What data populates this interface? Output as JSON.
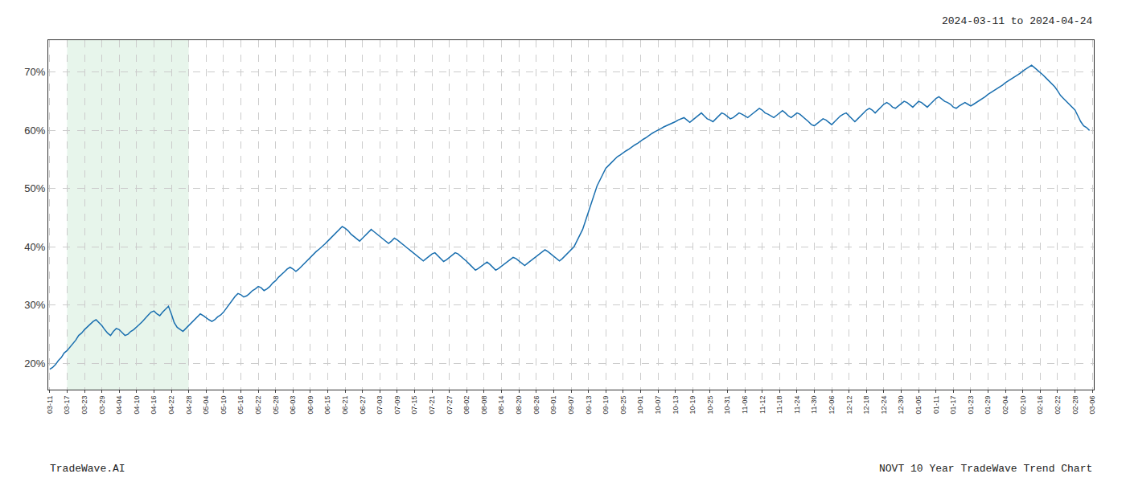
{
  "chart_data": {
    "type": "line",
    "annotations": [
      "2024-03-11 to 2024-04-24",
      "TradeWave.AI",
      "NOVT 10 Year TradeWave Trend Chart"
    ],
    "color": "#1a6faf",
    "grid": true,
    "shade": {
      "start": "03-17",
      "end": "04-28",
      "color": "#d4edda"
    },
    "ylim": [
      0.155,
      0.755
    ],
    "yticks": [
      {
        "value": 0.2,
        "label": "20%"
      },
      {
        "value": 0.3,
        "label": "30%"
      },
      {
        "value": 0.4,
        "label": "40%"
      },
      {
        "value": 0.5,
        "label": "50%"
      },
      {
        "value": 0.6,
        "label": "60%"
      },
      {
        "value": 0.7,
        "label": "70%"
      }
    ],
    "categories": [
      "03-11",
      null,
      null,
      null,
      null,
      null,
      "03-17",
      null,
      null,
      null,
      null,
      null,
      "03-23",
      null,
      null,
      null,
      null,
      null,
      "03-29",
      null,
      null,
      null,
      null,
      null,
      "04-04",
      null,
      null,
      null,
      null,
      null,
      "04-10",
      null,
      null,
      null,
      null,
      null,
      "04-16",
      null,
      null,
      null,
      null,
      null,
      "04-22",
      null,
      null,
      null,
      null,
      null,
      "04-28",
      null,
      null,
      null,
      null,
      null,
      "05-04",
      null,
      null,
      null,
      null,
      null,
      "05-10",
      null,
      null,
      null,
      null,
      null,
      "05-16",
      null,
      null,
      null,
      null,
      null,
      "05-22",
      null,
      null,
      null,
      null,
      null,
      "05-28",
      null,
      null,
      null,
      null,
      null,
      "06-03",
      null,
      null,
      null,
      null,
      null,
      "06-09",
      null,
      null,
      null,
      null,
      null,
      "06-15",
      null,
      null,
      null,
      null,
      null,
      "06-21",
      null,
      null,
      null,
      null,
      null,
      "06-27",
      null,
      null,
      null,
      null,
      null,
      "07-03",
      null,
      null,
      null,
      null,
      null,
      "07-09",
      null,
      null,
      null,
      null,
      null,
      "07-15",
      null,
      null,
      null,
      null,
      null,
      "07-21",
      null,
      null,
      null,
      null,
      null,
      "07-27",
      null,
      null,
      null,
      null,
      null,
      "08-02",
      null,
      null,
      null,
      null,
      null,
      "08-08",
      null,
      null,
      null,
      null,
      null,
      "08-14",
      null,
      null,
      null,
      null,
      null,
      "08-20",
      null,
      null,
      null,
      null,
      null,
      "08-26",
      null,
      null,
      null,
      null,
      null,
      "09-01",
      null,
      null,
      null,
      null,
      null,
      "09-07",
      null,
      null,
      null,
      null,
      null,
      "09-13",
      null,
      null,
      null,
      null,
      null,
      "09-19",
      null,
      null,
      null,
      null,
      null,
      "09-25",
      null,
      null,
      null,
      null,
      null,
      "10-01",
      null,
      null,
      null,
      null,
      null,
      "10-07",
      null,
      null,
      null,
      null,
      null,
      "10-13",
      null,
      null,
      null,
      null,
      null,
      "10-19",
      null,
      null,
      null,
      null,
      null,
      "10-25",
      null,
      null,
      null,
      null,
      null,
      "10-31",
      null,
      null,
      null,
      null,
      null,
      "11-06",
      null,
      null,
      null,
      null,
      null,
      "11-12",
      null,
      null,
      null,
      null,
      null,
      "11-18",
      null,
      null,
      null,
      null,
      null,
      "11-24",
      null,
      null,
      null,
      null,
      null,
      "11-30",
      null,
      null,
      null,
      null,
      null,
      "12-06",
      null,
      null,
      null,
      null,
      null,
      "12-12",
      null,
      null,
      null,
      null,
      null,
      "12-18",
      null,
      null,
      null,
      null,
      null,
      "12-24",
      null,
      null,
      null,
      null,
      null,
      "12-30",
      null,
      null,
      null,
      null,
      null,
      "01-05",
      null,
      null,
      null,
      null,
      null,
      "01-11",
      null,
      null,
      null,
      null,
      null,
      "01-17",
      null,
      null,
      null,
      null,
      null,
      "01-23",
      null,
      null,
      null,
      null,
      null,
      "01-29",
      null,
      null,
      null,
      null,
      null,
      "02-04",
      null,
      null,
      null,
      null,
      null,
      "02-10",
      null,
      null,
      null,
      null,
      null,
      "02-16",
      null,
      null,
      null,
      null,
      null,
      "02-22",
      null,
      null,
      null,
      null,
      null,
      "02-28",
      null,
      null,
      null,
      null,
      null,
      "03-06"
    ],
    "values": [
      0.19,
      0.193,
      0.198,
      0.205,
      0.21,
      0.218,
      0.222,
      0.228,
      0.235,
      0.24,
      0.248,
      0.252,
      0.258,
      0.263,
      0.268,
      0.272,
      0.275,
      0.27,
      0.265,
      0.258,
      0.252,
      0.248,
      0.255,
      0.26,
      0.258,
      0.253,
      0.248,
      0.25,
      0.255,
      0.258,
      0.262,
      0.267,
      0.272,
      0.278,
      0.283,
      0.288,
      0.29,
      0.285,
      0.282,
      0.288,
      0.293,
      0.298,
      0.285,
      0.27,
      0.262,
      0.258,
      0.255,
      0.26,
      0.265,
      0.27,
      0.275,
      0.28,
      0.285,
      0.282,
      0.278,
      0.275,
      0.272,
      0.275,
      0.28,
      0.283,
      0.288,
      0.295,
      0.302,
      0.308,
      0.315,
      0.32,
      0.318,
      0.314,
      0.316,
      0.32,
      0.325,
      0.328,
      0.332,
      0.33,
      0.325,
      0.328,
      0.332,
      0.338,
      0.342,
      0.348,
      0.352,
      0.357,
      0.362,
      0.365,
      0.362,
      0.358,
      0.362,
      0.367,
      0.372,
      0.378,
      0.383,
      0.388,
      0.392,
      0.396,
      0.4,
      0.405,
      0.41,
      0.415,
      0.42,
      0.425,
      0.43,
      0.435,
      0.432,
      0.428,
      0.422,
      0.418,
      0.414,
      0.41,
      0.415,
      0.42,
      0.425,
      0.43,
      0.426,
      0.422,
      0.418,
      0.414,
      0.41,
      0.406,
      0.41,
      0.415,
      0.412,
      0.408,
      0.404,
      0.4,
      0.396,
      0.392,
      0.388,
      0.384,
      0.38,
      0.376,
      0.38,
      0.384,
      0.388,
      0.39,
      0.385,
      0.38,
      0.375,
      0.378,
      0.382,
      0.386,
      0.39,
      0.388,
      0.384,
      0.38,
      0.375,
      0.37,
      0.365,
      0.36,
      0.363,
      0.367,
      0.371,
      0.374,
      0.37,
      0.365,
      0.36,
      0.363,
      0.367,
      0.371,
      0.375,
      0.378,
      0.382,
      0.38,
      0.376,
      0.372,
      0.368,
      0.372,
      0.376,
      0.38,
      0.384,
      0.388,
      0.392,
      0.395,
      0.392,
      0.388,
      0.384,
      0.38,
      0.376,
      0.38,
      0.385,
      0.39,
      0.395,
      0.4,
      0.41,
      0.42,
      0.43,
      0.445,
      0.46,
      0.475,
      0.492,
      0.505,
      0.515,
      0.525,
      0.535,
      0.54,
      0.545,
      0.55,
      0.555,
      0.558,
      0.562,
      0.565,
      0.568,
      0.572,
      0.575,
      0.578,
      0.582,
      0.585,
      0.588,
      0.592,
      0.595,
      0.598,
      0.6,
      0.603,
      0.606,
      0.608,
      0.61,
      0.612,
      0.615,
      0.618,
      0.62,
      0.622,
      0.618,
      0.614,
      0.618,
      0.622,
      0.626,
      0.63,
      0.625,
      0.62,
      0.618,
      0.615,
      0.62,
      0.625,
      0.63,
      0.628,
      0.624,
      0.62,
      0.622,
      0.626,
      0.63,
      0.628,
      0.625,
      0.622,
      0.626,
      0.63,
      0.634,
      0.638,
      0.635,
      0.63,
      0.628,
      0.625,
      0.622,
      0.626,
      0.63,
      0.634,
      0.63,
      0.625,
      0.622,
      0.626,
      0.63,
      0.628,
      0.624,
      0.62,
      0.615,
      0.61,
      0.608,
      0.612,
      0.616,
      0.62,
      0.618,
      0.614,
      0.61,
      0.615,
      0.62,
      0.625,
      0.628,
      0.63,
      0.625,
      0.62,
      0.615,
      0.62,
      0.625,
      0.63,
      0.635,
      0.638,
      0.635,
      0.63,
      0.635,
      0.64,
      0.645,
      0.648,
      0.645,
      0.64,
      0.638,
      0.642,
      0.646,
      0.65,
      0.648,
      0.644,
      0.64,
      0.645,
      0.65,
      0.648,
      0.644,
      0.64,
      0.645,
      0.65,
      0.655,
      0.658,
      0.654,
      0.65,
      0.648,
      0.645,
      0.64,
      0.638,
      0.642,
      0.645,
      0.648,
      0.645,
      0.642,
      0.645,
      0.648,
      0.652,
      0.655,
      0.658,
      0.662,
      0.665,
      0.668,
      0.672,
      0.675,
      0.678,
      0.682,
      0.685,
      0.688,
      0.692,
      0.695,
      0.698,
      0.702,
      0.705,
      0.708,
      0.712,
      0.708,
      0.704,
      0.7,
      0.695,
      0.69,
      0.685,
      0.68,
      0.675,
      0.668,
      0.66,
      0.655,
      0.65,
      0.645,
      0.64,
      0.635,
      0.625,
      0.615,
      0.608,
      0.605,
      0.6,
      null
    ]
  }
}
